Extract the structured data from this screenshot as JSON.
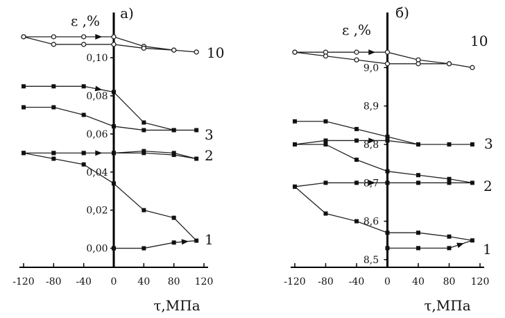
{
  "chart_data": [
    {
      "type": "line",
      "panel_label": "а)",
      "ylabel": "ε ,%",
      "xlabel": "τ,МПа",
      "xlim": [
        -120,
        120
      ],
      "ylim": [
        -0.01,
        0.115
      ],
      "x_ticks": [
        -120,
        -80,
        -40,
        0,
        40,
        80,
        120
      ],
      "x_tick_labels": [
        "-120",
        "-80",
        "-40",
        "0",
        "40",
        "80",
        "120"
      ],
      "y_ticks": [
        0.0,
        0.02,
        0.04,
        0.06,
        0.08,
        0.1
      ],
      "y_tick_labels": [
        "0,00",
        "0,02",
        "0,04",
        "0,06",
        "0,08",
        "0,10"
      ],
      "series": [
        {
          "name": "1",
          "marker": "square",
          "x": [
            0,
            40,
            80,
            110,
            80,
            40,
            0,
            -40,
            -80,
            -120
          ],
          "y": [
            0.0,
            0.0,
            0.003,
            0.004,
            0.016,
            0.02,
            0.034,
            0.044,
            0.047,
            0.05
          ]
        },
        {
          "name": "2",
          "marker": "square",
          "x": [
            -120,
            -80,
            -40,
            0,
            40,
            80,
            110,
            80,
            40,
            0,
            -40,
            -80,
            -120
          ],
          "y": [
            0.05,
            0.05,
            0.05,
            0.05,
            0.05,
            0.049,
            0.047,
            0.05,
            0.051,
            0.05,
            0.05,
            0.05,
            0.05
          ]
        },
        {
          "name": "3",
          "marker": "square",
          "x": [
            -120,
            -80,
            -40,
            0,
            40,
            80,
            110,
            80,
            40,
            0,
            -40,
            -80,
            -120
          ],
          "y": [
            0.085,
            0.085,
            0.085,
            0.082,
            0.066,
            0.062,
            0.062,
            0.062,
            0.062,
            0.064,
            0.07,
            0.074,
            0.074
          ]
        },
        {
          "name": "10",
          "marker": "circle",
          "x": [
            -120,
            -80,
            -40,
            0,
            40,
            80,
            110,
            80,
            40,
            0,
            -40,
            -80,
            -120
          ],
          "y": [
            0.111,
            0.111,
            0.111,
            0.111,
            0.106,
            0.104,
            0.103,
            0.104,
            0.105,
            0.107,
            0.107,
            0.107,
            0.111
          ]
        }
      ],
      "curve_labels": [
        "1",
        "2",
        "3",
        "10"
      ]
    },
    {
      "type": "line",
      "panel_label": "б)",
      "ylabel": "ε ,%",
      "xlabel": "τ,МПа",
      "xlim": [
        -120,
        120
      ],
      "ylim": [
        8.48,
        9.1
      ],
      "x_ticks": [
        -120,
        -80,
        -40,
        0,
        40,
        80,
        120
      ],
      "x_tick_labels": [
        "-120",
        "-80",
        "-40",
        "0",
        "40",
        "80",
        "120"
      ],
      "y_ticks": [
        8.5,
        8.6,
        8.7,
        8.8,
        8.9,
        9.0
      ],
      "y_tick_labels": [
        "8,5",
        "8,6",
        "8,7",
        "8,8",
        "8,9",
        "9,0"
      ],
      "series": [
        {
          "name": "1",
          "marker": "square",
          "x": [
            0,
            40,
            80,
            110,
            80,
            40,
            0,
            -40,
            -80,
            -120
          ],
          "y": [
            8.53,
            8.53,
            8.53,
            8.55,
            8.56,
            8.57,
            8.57,
            8.6,
            8.62,
            8.69
          ]
        },
        {
          "name": "2",
          "marker": "square",
          "x": [
            -120,
            -80,
            -40,
            0,
            40,
            80,
            110,
            80,
            40,
            0,
            -40,
            -80,
            -120
          ],
          "y": [
            8.69,
            8.7,
            8.7,
            8.7,
            8.7,
            8.7,
            8.7,
            8.71,
            8.72,
            8.73,
            8.76,
            8.8,
            8.8
          ]
        },
        {
          "name": "3",
          "marker": "square",
          "x": [
            -120,
            -80,
            -40,
            0,
            40,
            80,
            110,
            80,
            40,
            0,
            -40,
            -80,
            -120
          ],
          "y": [
            8.8,
            8.81,
            8.81,
            8.81,
            8.8,
            8.8,
            8.8,
            8.8,
            8.8,
            8.82,
            8.84,
            8.86,
            8.86
          ]
        },
        {
          "name": "10",
          "marker": "circle",
          "x": [
            -120,
            -80,
            -40,
            0,
            40,
            80,
            110,
            80,
            40,
            0,
            -40,
            -80,
            -120
          ],
          "y": [
            9.04,
            9.04,
            9.04,
            9.04,
            9.02,
            9.01,
            9.0,
            9.01,
            9.01,
            9.01,
            9.02,
            9.03,
            9.04
          ]
        }
      ],
      "curve_labels": [
        "1",
        "2",
        "3",
        "10"
      ]
    }
  ]
}
